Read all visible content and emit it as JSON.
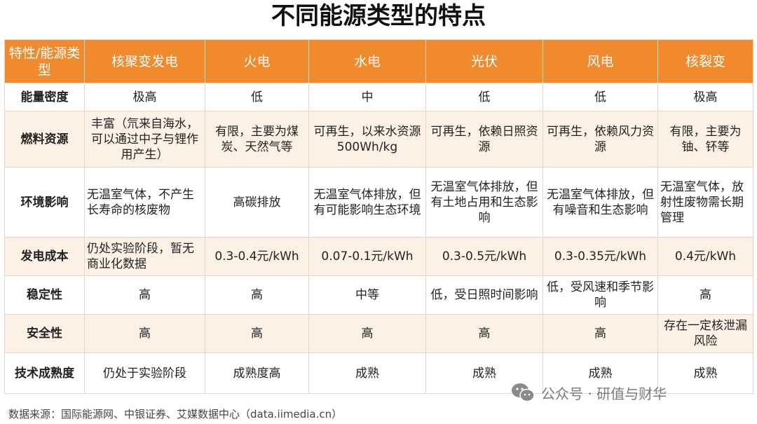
{
  "title": "不同能源类型的特点",
  "header": [
    "特性/能源类型",
    "核聚变发电",
    "火电",
    "水电",
    "光伏",
    "风电",
    "核裂变"
  ],
  "rows": [
    {
      "label": "能量密度",
      "cells": [
        "极高",
        "低",
        "中",
        "低",
        "低",
        "极高"
      ]
    },
    {
      "label": "燃料资源",
      "cells": [
        "丰富（氘来自海水，可以通过中子与锂作用产生）",
        "有限，主要为煤炭、天然气等",
        "可再生，以来水资源500Wh/kg",
        "可再生，依赖日照资源",
        "可再生，依赖风力资源",
        "有限，主要为铀、钚等"
      ]
    },
    {
      "label": "环境影响",
      "cells": [
        "无温室气体，不产生长寿命的核废物",
        "高碳排放",
        "无温室气体排放，但有可能影响生态环境",
        "无温室气体排放，但有土地占用和生态影响",
        "无温室气体排放，但有噪音和生态影响",
        "无温室气体，放射性废物需长期管理"
      ]
    },
    {
      "label": "发电成本",
      "cells": [
        "仍处实验阶段，暂无商业化数据",
        "0.3-0.4元/kWh",
        "0.07-0.1元/kWh",
        "0.3-0.5元/kWh",
        "0.3-0.35元/kWh",
        "0.4元/kWh"
      ]
    },
    {
      "label": "稳定性",
      "cells": [
        "高",
        "高",
        "中等",
        "低，受日照时间影响",
        "低，受风速和季节影响",
        "高"
      ]
    },
    {
      "label": "安全性",
      "cells": [
        "高",
        "高",
        "高",
        "高",
        "高",
        "存在一定核泄漏风险"
      ]
    },
    {
      "label": "技术成熟度",
      "cells": [
        "仍处于实验阶段",
        "成熟度高",
        "成熟",
        "成熟",
        "成熟",
        "成熟"
      ]
    }
  ],
  "source": "数据来源：国际能源网、中银证券、艾媒数据中心（data.iimedia.cn）",
  "watermark": "公众号 · 研值与财华",
  "colors": {
    "header_bg": "#f08a2c",
    "stripe": "#fdf1e6"
  },
  "watermark_icon": "wechat-icon"
}
